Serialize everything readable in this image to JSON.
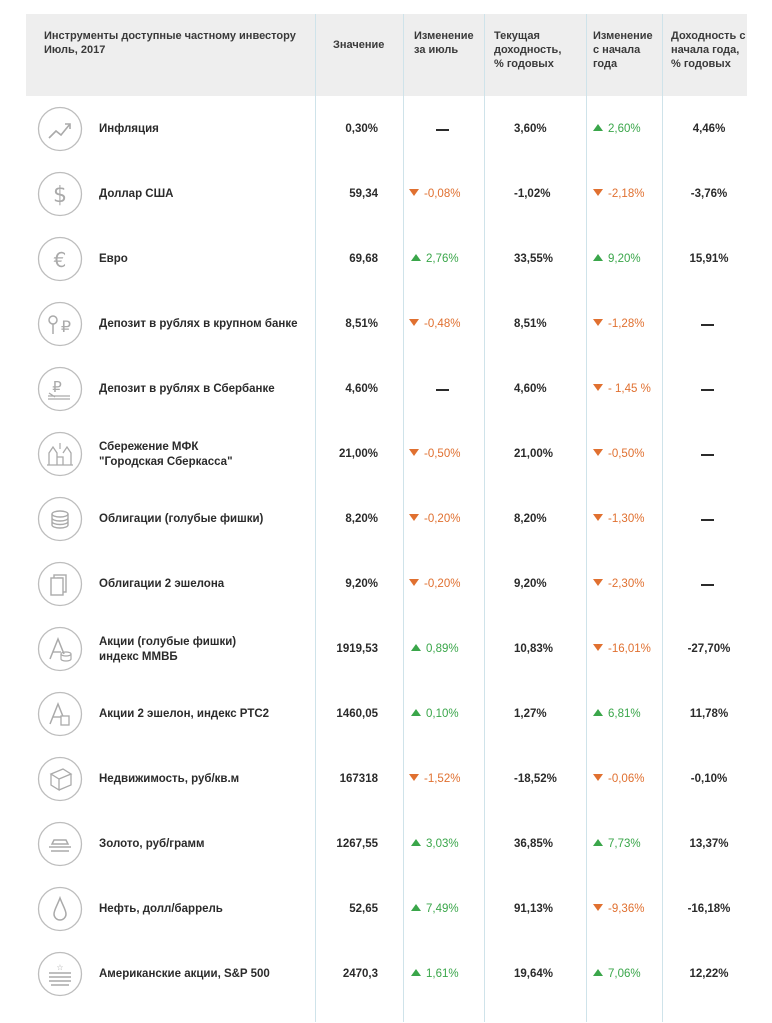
{
  "header": {
    "title_line1": "Инструменты доступные частному инвестору",
    "title_line2": "Июль, 2017",
    "col_value": "Значение",
    "col_month_line1": "Изменение",
    "col_month_line2": "за июль",
    "col_current_line1": "Текущая",
    "col_current_line2": "доходность,",
    "col_current_line3": "% годовых",
    "col_ytd_line1": "Изменение",
    "col_ytd_line2": "с начала",
    "col_ytd_line3": "года",
    "col_yield_line1": "Доходность с",
    "col_yield_line2": "начала года,",
    "col_yield_line3": "% годовых"
  },
  "colors": {
    "up": "#3aa64a",
    "down": "#e07030",
    "header_bg": "#eeeeee",
    "divider": "#cfe3ea"
  },
  "rows": [
    {
      "icon": "trend-up-icon",
      "name1": "Инфляция",
      "name2": "",
      "value": "0,30%",
      "month": "",
      "month_dir": "none",
      "current": "3,60%",
      "ytd": "2,60%",
      "ytd_dir": "up",
      "yield": "4,46%"
    },
    {
      "icon": "dollar-icon",
      "name1": "Доллар США",
      "name2": "",
      "value": "59,34",
      "month": "-0,08%",
      "month_dir": "down",
      "current": "-1,02%",
      "ytd": "-2,18%",
      "ytd_dir": "down",
      "yield": "-3,76%"
    },
    {
      "icon": "euro-icon",
      "name1": "Евро",
      "name2": "",
      "value": "69,68",
      "month": "2,76%",
      "month_dir": "up",
      "current": "33,55%",
      "ytd": "9,20%",
      "ytd_dir": "up",
      "yield": "15,91%"
    },
    {
      "icon": "deposit-bank-icon",
      "name1": "Депозит в рублях в крупном банке",
      "name2": "",
      "value": "8,51%",
      "month": "-0,48%",
      "month_dir": "down",
      "current": "8,51%",
      "ytd": "-1,28%",
      "ytd_dir": "down",
      "yield": ""
    },
    {
      "icon": "ruble-stack-icon",
      "name1": "Депозит в рублях в Сбербанке",
      "name2": "",
      "value": "4,60%",
      "month": "",
      "month_dir": "none",
      "current": "4,60%",
      "ytd": "- 1,45 %",
      "ytd_dir": "down",
      "yield": ""
    },
    {
      "icon": "kremlin-icon",
      "name1": "Сбережение МФК",
      "name2": "\"Городская Сберкасса\"",
      "value": "21,00%",
      "month": "-0,50%",
      "month_dir": "down",
      "current": "21,00%",
      "ytd": "-0,50%",
      "ytd_dir": "down",
      "yield": ""
    },
    {
      "icon": "coins-icon",
      "name1": "Облигации (голубые фишки)",
      "name2": "",
      "value": "8,20%",
      "month": "-0,20%",
      "month_dir": "down",
      "current": "8,20%",
      "ytd": "-1,30%",
      "ytd_dir": "down",
      "yield": ""
    },
    {
      "icon": "document-icon",
      "name1": "Облигации 2 эшелона",
      "name2": "",
      "value": "9,20%",
      "month": "-0,20%",
      "month_dir": "down",
      "current": "9,20%",
      "ytd": "-2,30%",
      "ytd_dir": "down",
      "yield": ""
    },
    {
      "icon": "stocks-blue-icon",
      "name1": "Акции (голубые фишки)",
      "name2": "индекс ММВБ",
      "value": "1919,53",
      "month": "0,89%",
      "month_dir": "up",
      "current": "10,83%",
      "ytd": "-16,01%",
      "ytd_dir": "down",
      "yield": "-27,70%"
    },
    {
      "icon": "stocks-second-icon",
      "name1": "Акции 2 эшелон, индекс РТС2",
      "name2": "",
      "value": "1460,05",
      "month": "0,10%",
      "month_dir": "up",
      "current": "1,27%",
      "ytd": "6,81%",
      "ytd_dir": "up",
      "yield": "11,78%"
    },
    {
      "icon": "realty-icon",
      "name1": "Недвижимость, руб/кв.м",
      "name2": "",
      "value": "167318",
      "month": "-1,52%",
      "month_dir": "down",
      "current": "-18,52%",
      "ytd": "-0,06%",
      "ytd_dir": "down",
      "yield": "-0,10%"
    },
    {
      "icon": "gold-icon",
      "name1": "Золото, руб/грамм",
      "name2": "",
      "value": "1267,55",
      "month": "3,03%",
      "month_dir": "up",
      "current": "36,85%",
      "ytd": "7,73%",
      "ytd_dir": "up",
      "yield": "13,37%"
    },
    {
      "icon": "oil-drop-icon",
      "name1": "Нефть, долл/баррель",
      "name2": "",
      "value": "52,65",
      "month": "7,49%",
      "month_dir": "up",
      "current": "91,13%",
      "ytd": "-9,36%",
      "ytd_dir": "down",
      "yield": "-16,18%"
    },
    {
      "icon": "us-flag-icon",
      "name1": "Американские акции, S&P 500",
      "name2": "",
      "value": "2470,3",
      "month": "1,61%",
      "month_dir": "up",
      "current": "19,64%",
      "ytd": "7,06%",
      "ytd_dir": "up",
      "yield": "12,22%"
    }
  ]
}
